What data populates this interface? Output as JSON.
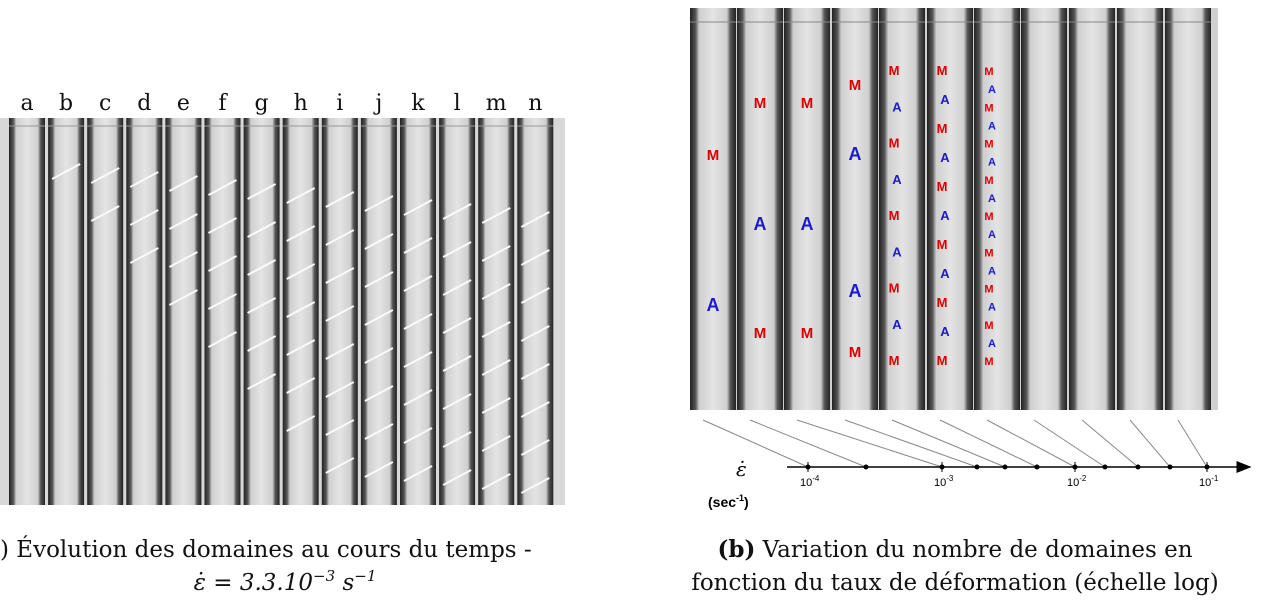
{
  "panel_a": {
    "labels": [
      "a",
      "b",
      "c",
      "d",
      "e",
      "f",
      "g",
      "h",
      "i",
      "j",
      "k",
      "l",
      "m",
      "n"
    ],
    "caption": {
      "text": ") Évolution des domaines au cours du temps -",
      "formula": [
        "ε̇ = 3.3.10",
        "−3",
        " s",
        "−1"
      ]
    }
  },
  "panel_b": {
    "strips": [
      [
        "M",
        "A"
      ],
      [
        "M",
        "A",
        "M"
      ],
      [
        "M",
        "A",
        "M"
      ],
      [
        "M",
        "A",
        "A",
        "M"
      ],
      [
        "M",
        "A",
        "M",
        "A",
        "M",
        "A",
        "M",
        "A",
        "M"
      ],
      [
        "M",
        "A",
        "M",
        "A",
        "M",
        "A",
        "M",
        "A",
        "M",
        "A",
        "M"
      ],
      [
        "M",
        "A",
        "M",
        "A",
        "M",
        "A",
        "M",
        "A",
        "M",
        "A",
        "M",
        "A",
        "M",
        "A",
        "M",
        "A",
        "M"
      ],
      [],
      [],
      [],
      []
    ],
    "axis": {
      "symbol": "ε̇",
      "unit": "(sec",
      "unit_exp": "-1",
      "unit_close": ")",
      "ticks": [
        {
          "base": "10",
          "exp": "-4"
        },
        {
          "base": "10",
          "exp": "-3"
        },
        {
          "base": "10",
          "exp": "-2"
        },
        {
          "base": "10",
          "exp": "-1"
        }
      ]
    },
    "caption": {
      "tag": "(b)",
      "line1": " Variation du nombre de domaines en",
      "line2": "fonction du taux de déformation (échelle log)"
    }
  }
}
